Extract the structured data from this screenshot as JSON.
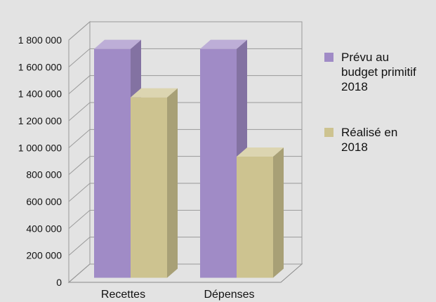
{
  "chart_data": {
    "type": "bar",
    "style": "3d-clustered-column",
    "categories": [
      "Recettes",
      "Dépenses"
    ],
    "series": [
      {
        "name": "Prévu au budget primitif 2018",
        "legend_lines": [
          "Prévu au",
          "budget primitif",
          "2018"
        ],
        "values": [
          1700000,
          1700000
        ],
        "color": "#a08bc6"
      },
      {
        "name": "Réalisé en 2018",
        "legend_lines": [
          "Réalisé en",
          "2018"
        ],
        "values": [
          1340000,
          900000
        ],
        "color": "#cdc390"
      }
    ],
    "y_ticks": [
      0,
      200000,
      400000,
      600000,
      800000,
      1000000,
      1200000,
      1400000,
      1600000,
      1800000
    ],
    "y_tick_labels": [
      "0",
      "200 000",
      "400 000",
      "600 000",
      "800 000",
      "1 000 000",
      "1 200 000",
      "1 400 000",
      "1 600 000",
      "1 800 000"
    ],
    "ylim": [
      0,
      1800000
    ],
    "grid": true,
    "legend_position": "right",
    "title": "",
    "xlabel": "",
    "ylabel": ""
  }
}
